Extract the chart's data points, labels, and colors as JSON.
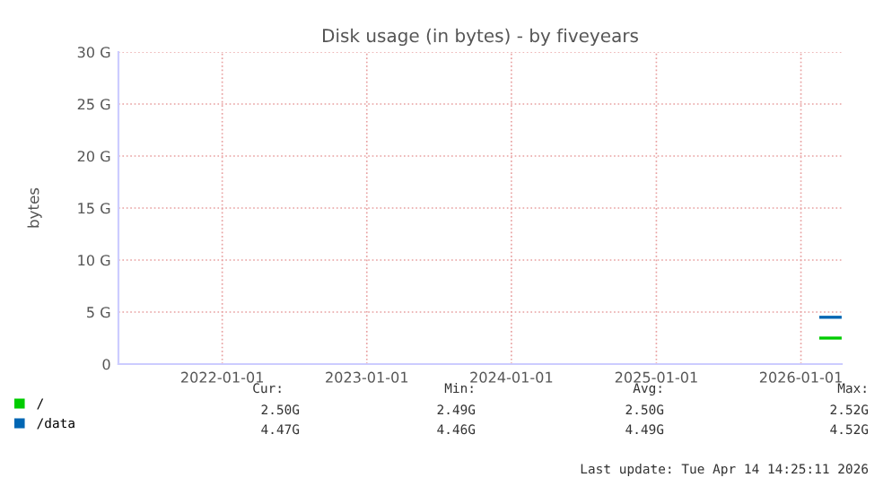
{
  "chart_data": {
    "type": "line",
    "title": "Disk usage (in bytes) - by fiveyears",
    "ylabel": "bytes",
    "series": [
      {
        "name": "/",
        "color": "#00cc00",
        "x": [
          "2026-02-20",
          "2026-04-10"
        ],
        "values": [
          2.5,
          2.5
        ]
      },
      {
        "name": "/data",
        "color": "#0066b3",
        "x": [
          "2026-02-20",
          "2026-04-10"
        ],
        "values": [
          4.5,
          4.5
        ]
      }
    ],
    "xlim": [
      "2021-04-14",
      "2026-04-14"
    ],
    "xticks": [
      "2022-01-01",
      "2023-01-01",
      "2024-01-01",
      "2025-01-01",
      "2026-01-01"
    ],
    "ylim": [
      0,
      30
    ],
    "yticks": [
      {
        "value": 0,
        "label": "0"
      },
      {
        "value": 5,
        "label": "5 G"
      },
      {
        "value": 10,
        "label": "10 G"
      },
      {
        "value": 15,
        "label": "15 G"
      },
      {
        "value": 20,
        "label": "20 G"
      },
      {
        "value": 25,
        "label": "25 G"
      },
      {
        "value": 30,
        "label": "30 G"
      }
    ],
    "grid": true,
    "legend": "bottom",
    "marker": "none",
    "line_style": "solid",
    "annotations": [
      "Cur:",
      "Min:",
      "Avg:",
      "Max:",
      "2.50G",
      "2.49G",
      "2.50G",
      "2.52G",
      "4.47G",
      "4.46G",
      "4.49G",
      "4.52G",
      "Last update: Tue Apr 14 14:25:11 2026"
    ]
  }
}
